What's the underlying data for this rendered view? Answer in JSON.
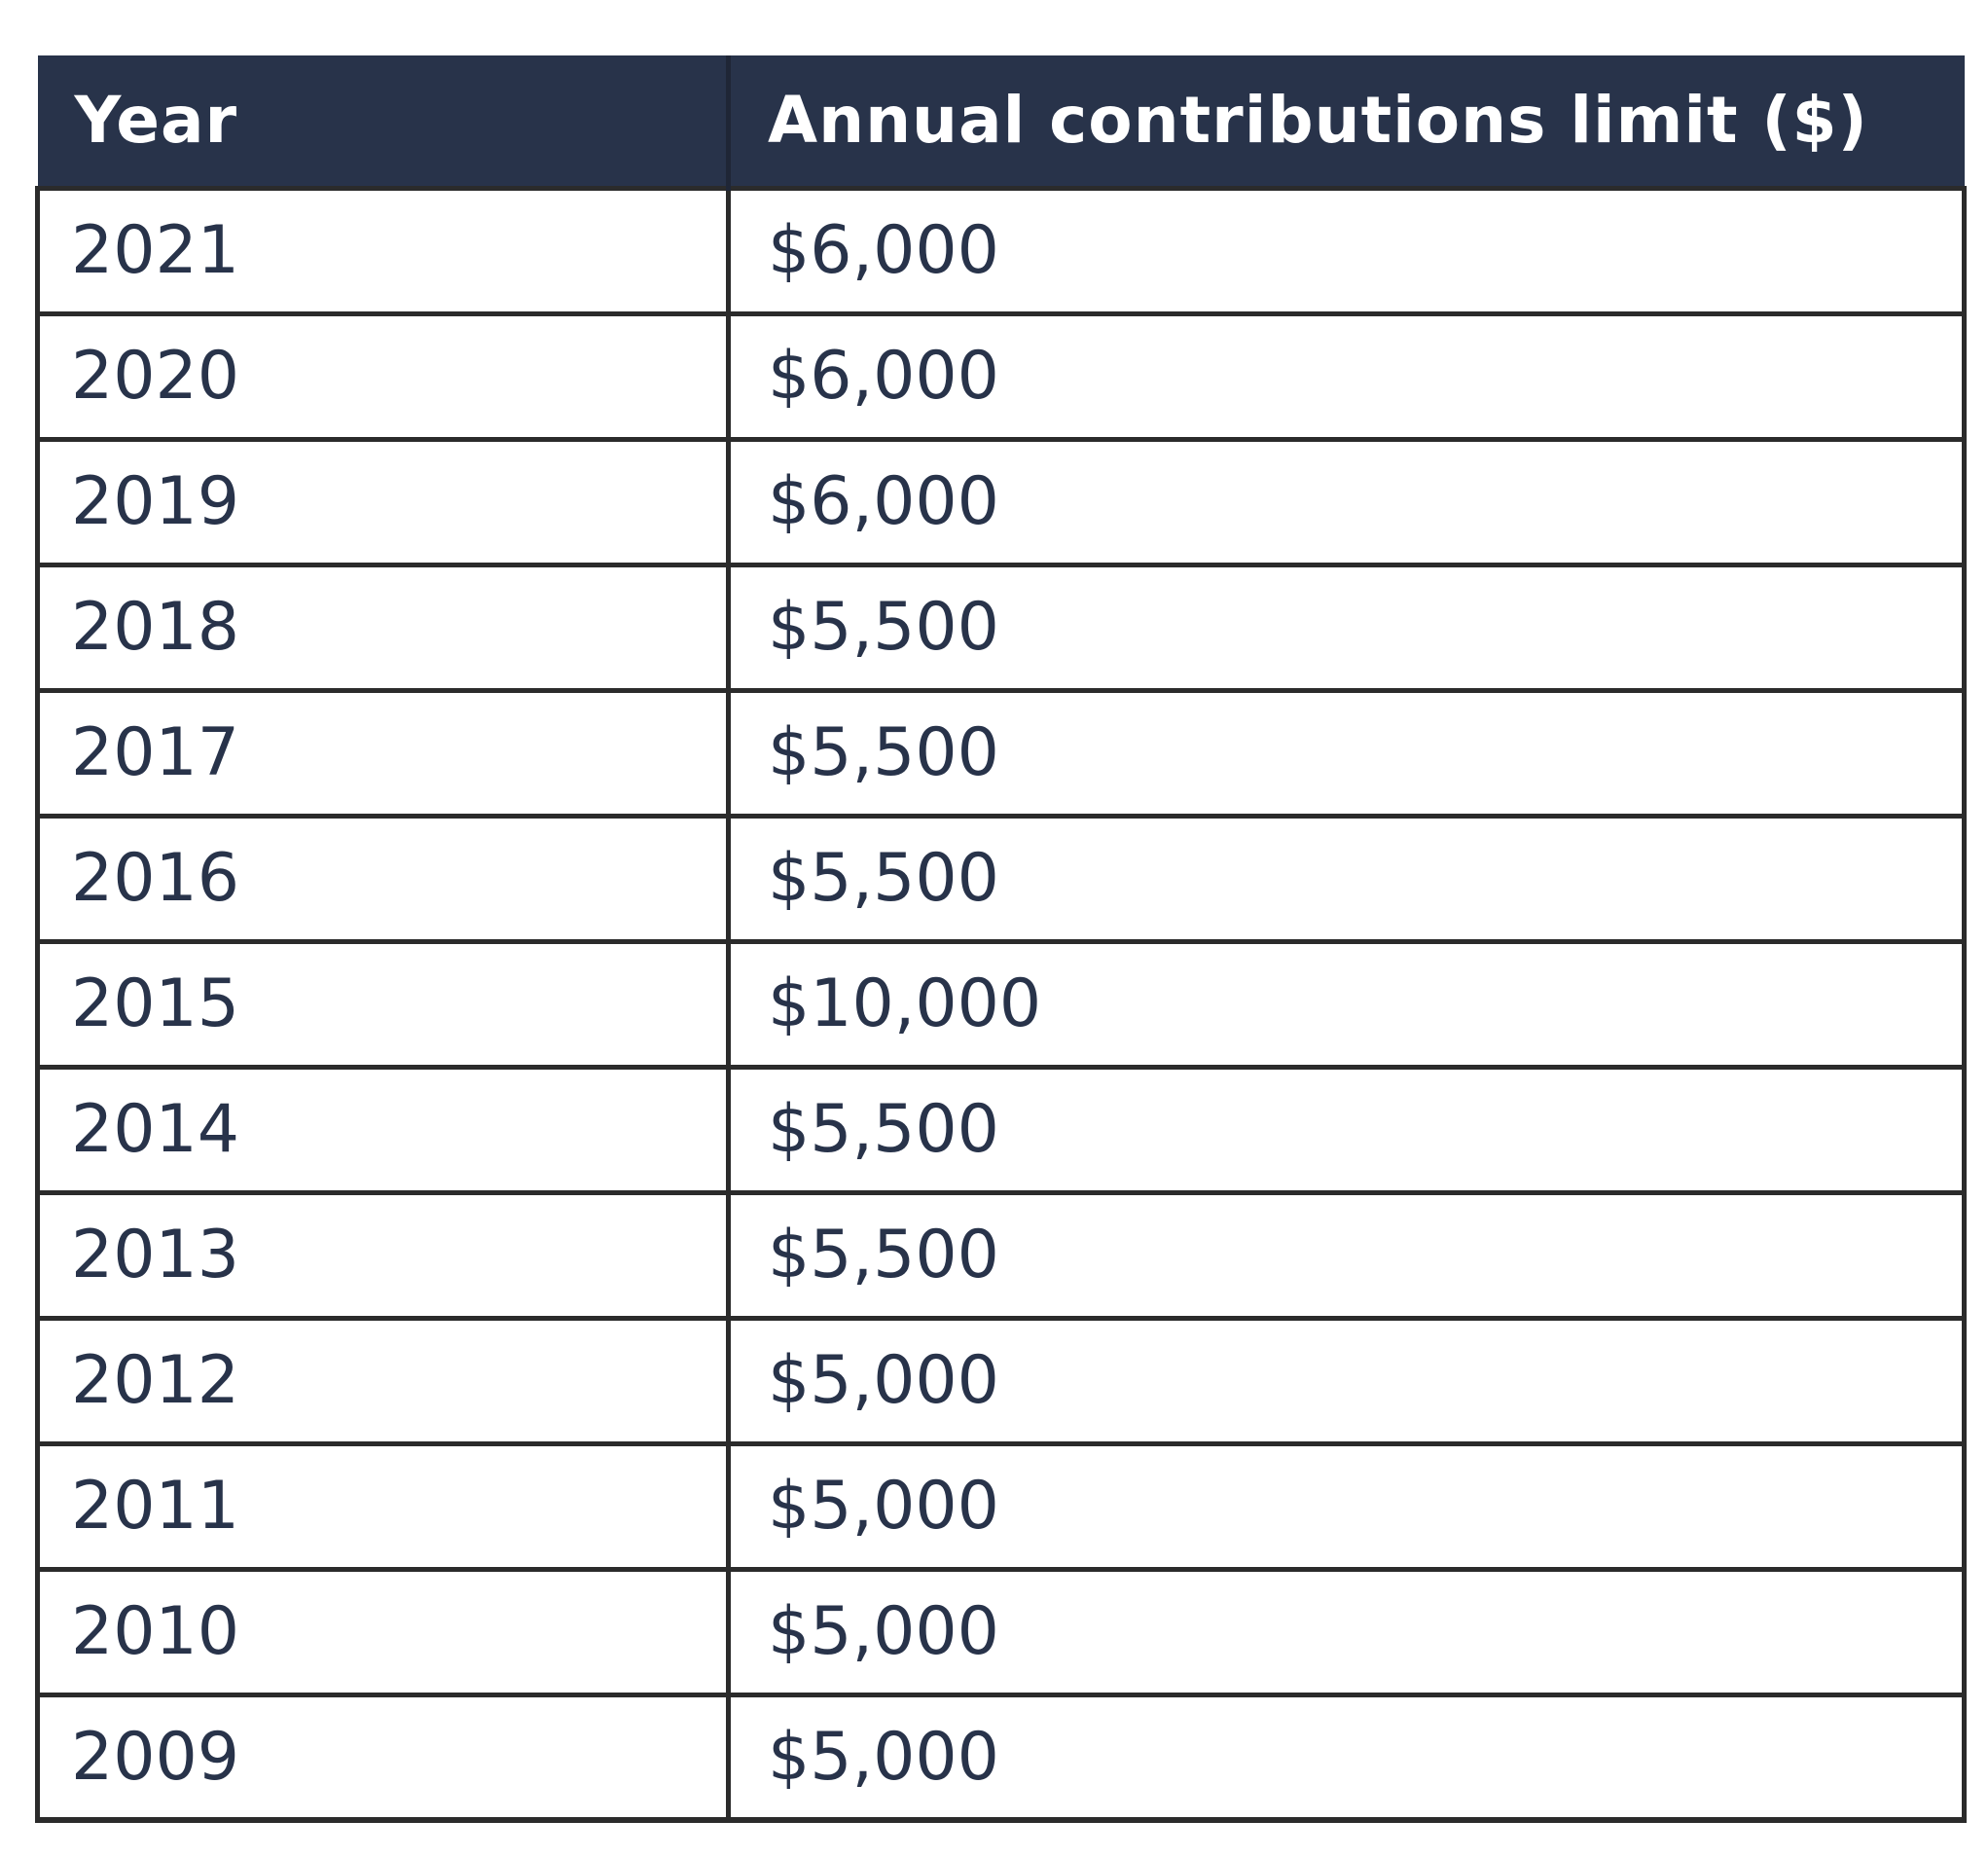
{
  "table": {
    "headers": [
      "Year",
      "Annual contributions limit ($)"
    ],
    "rows": [
      [
        "2021",
        "$6,000"
      ],
      [
        "2020",
        "$6,000"
      ],
      [
        "2019",
        "$6,000"
      ],
      [
        "2018",
        "$5,500"
      ],
      [
        "2017",
        "$5,500"
      ],
      [
        "2016",
        "$5,500"
      ],
      [
        "2015",
        "$10,000"
      ],
      [
        "2014",
        "$5,500"
      ],
      [
        "2013",
        "$5,500"
      ],
      [
        "2012",
        "$5,000"
      ],
      [
        "2011",
        "$5,000"
      ],
      [
        "2010",
        "$5,000"
      ],
      [
        "2009",
        "$5,000"
      ]
    ]
  },
  "colors": {
    "header_background": "#28334a",
    "header_text": "#ffffff",
    "body_text": "#28334a",
    "grid_lines": "#2b2b2b"
  }
}
